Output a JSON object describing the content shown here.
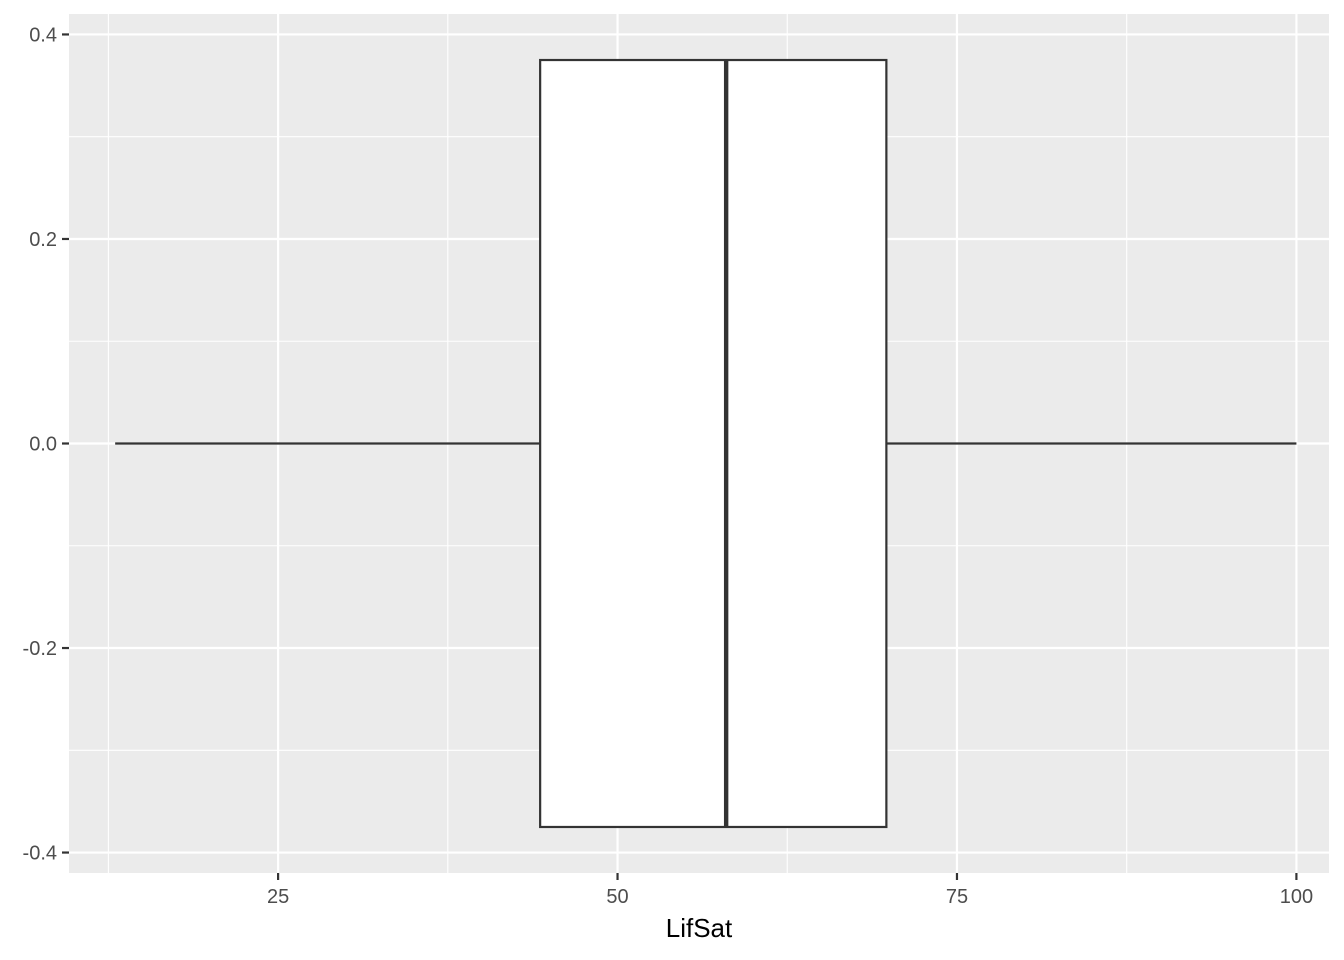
{
  "chart_data": {
    "type": "boxplot",
    "title": "",
    "xlabel": "LifSat",
    "ylabel": "",
    "xlim": [
      9.6,
      102.4
    ],
    "ylim": [
      -0.42,
      0.42
    ],
    "x_ticks": [
      25,
      50,
      75,
      100
    ],
    "x_minor_ticks": [
      12.5,
      37.5,
      62.5,
      87.5
    ],
    "y_ticks": [
      -0.4,
      -0.2,
      0.0,
      0.2,
      0.4
    ],
    "y_tick_labels": [
      "-0.4",
      "-0.2",
      "0.0",
      "0.2",
      "0.4"
    ],
    "y_minor_ticks": [
      -0.3,
      -0.1,
      0.1,
      0.3
    ],
    "grid": true,
    "box": {
      "min": 13,
      "q1": 44.3,
      "median": 58,
      "q3": 69.8,
      "max": 100,
      "center": 0,
      "half_width": 0.375
    },
    "colors": {
      "panel": "#ebebeb",
      "grid": "#ffffff",
      "box_fill": "#ffffff",
      "box_line": "#333333",
      "tick": "#333333",
      "tick_label": "#4d4d4d"
    }
  }
}
